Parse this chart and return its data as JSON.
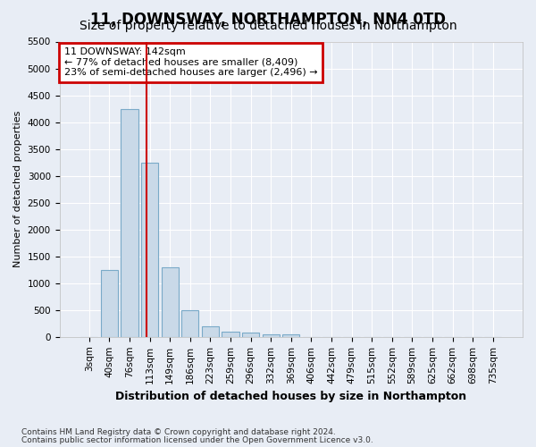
{
  "title": "11, DOWNSWAY, NORTHAMPTON, NN4 0TD",
  "subtitle": "Size of property relative to detached houses in Northampton",
  "xlabel": "Distribution of detached houses by size in Northampton",
  "ylabel": "Number of detached properties",
  "footnote1": "Contains HM Land Registry data © Crown copyright and database right 2024.",
  "footnote2": "Contains public sector information licensed under the Open Government Licence v3.0.",
  "bar_labels": [
    "3sqm",
    "40sqm",
    "76sqm",
    "113sqm",
    "149sqm",
    "186sqm",
    "223sqm",
    "259sqm",
    "296sqm",
    "332sqm",
    "369sqm",
    "406sqm",
    "442sqm",
    "479sqm",
    "515sqm",
    "552sqm",
    "589sqm",
    "625sqm",
    "662sqm",
    "698sqm",
    "735sqm"
  ],
  "bar_values": [
    0,
    1250,
    4250,
    3250,
    1300,
    500,
    200,
    100,
    80,
    50,
    40,
    0,
    0,
    0,
    0,
    0,
    0,
    0,
    0,
    0,
    0
  ],
  "bar_color": "#c9d9e8",
  "bar_edge_color": "#7aaac8",
  "property_line_color": "#cc0000",
  "property_line_x": 2.85,
  "annotation_text": "11 DOWNSWAY: 142sqm\n← 77% of detached houses are smaller (8,409)\n23% of semi-detached houses are larger (2,496) →",
  "annotation_box_color": "#cc0000",
  "ylim": [
    0,
    5500
  ],
  "yticks": [
    0,
    500,
    1000,
    1500,
    2000,
    2500,
    3000,
    3500,
    4000,
    4500,
    5000,
    5500
  ],
  "bg_color": "#e8edf5",
  "plot_bg_color": "#e8edf5",
  "grid_color": "#ffffff",
  "title_fontsize": 12,
  "subtitle_fontsize": 10,
  "xlabel_fontsize": 9,
  "ylabel_fontsize": 8,
  "tick_fontsize": 7.5,
  "annotation_fontsize": 8
}
